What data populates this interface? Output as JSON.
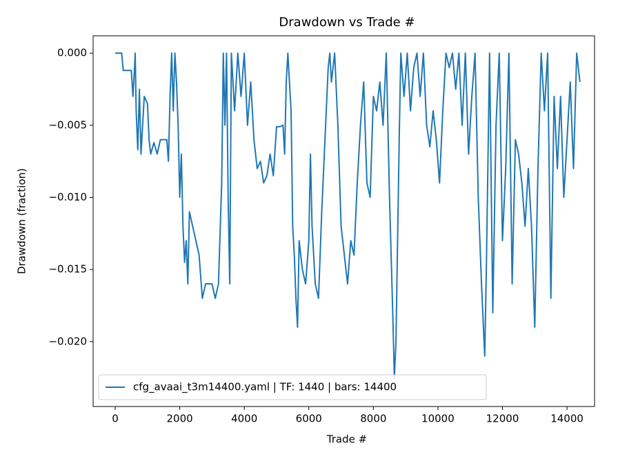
{
  "chart_data": {
    "type": "line",
    "title": "Drawdown vs Trade #",
    "xlabel": "Trade #",
    "ylabel": "Drawdown (fraction)",
    "x": [
      0,
      200,
      250,
      500,
      550,
      600,
      620,
      650,
      700,
      750,
      800,
      900,
      1000,
      1050,
      1100,
      1200,
      1300,
      1400,
      1600,
      1650,
      1700,
      1750,
      1800,
      1850,
      1900,
      1950,
      2000,
      2050,
      2100,
      2150,
      2200,
      2250,
      2300,
      2400,
      2500,
      2600,
      2700,
      2800,
      3000,
      3100,
      3200,
      3300,
      3350,
      3400,
      3450,
      3500,
      3550,
      3600,
      3700,
      3800,
      3900,
      4000,
      4100,
      4200,
      4300,
      4400,
      4500,
      4600,
      4700,
      4800,
      4900,
      5000,
      5100,
      5200,
      5250,
      5300,
      5350,
      5450,
      5500,
      5550,
      5600,
      5650,
      5700,
      5800,
      5900,
      6000,
      6050,
      6100,
      6200,
      6300,
      6400,
      6500,
      6600,
      6650,
      6700,
      6800,
      6900,
      7000,
      7100,
      7200,
      7300,
      7400,
      7500,
      7600,
      7700,
      7800,
      7900,
      8000,
      8100,
      8200,
      8300,
      8400,
      8500,
      8600,
      8650,
      8700,
      8800,
      8850,
      8950,
      9050,
      9150,
      9250,
      9350,
      9450,
      9550,
      9650,
      9750,
      9850,
      9950,
      10050,
      10150,
      10250,
      10350,
      10450,
      10550,
      10650,
      10750,
      10850,
      10950,
      11050,
      11150,
      11250,
      11350,
      11450,
      11500,
      11600,
      11700,
      11800,
      11900,
      12000,
      12100,
      12200,
      12300,
      12400,
      12500,
      12600,
      12700,
      12800,
      12900,
      13000,
      13100,
      13200,
      13300,
      13400,
      13500,
      13600,
      13700,
      13800,
      13900,
      14000,
      14100,
      14200,
      14300,
      14400
    ],
    "series": [
      {
        "name": "cfg_avaai_t3m14400.yaml | TF: 1440 | bars: 14400",
        "color": "#1f77b4",
        "values": [
          0,
          0,
          -0.0012,
          -0.0012,
          -0.003,
          -0.001,
          0,
          -0.004,
          -0.0067,
          -0.0025,
          -0.007,
          -0.003,
          -0.0035,
          -0.006,
          -0.007,
          -0.0062,
          -0.007,
          -0.006,
          -0.006,
          -0.0075,
          -0.003,
          0,
          -0.004,
          0,
          -0.002,
          -0.005,
          -0.01,
          -0.007,
          -0.012,
          -0.0145,
          -0.013,
          -0.016,
          -0.011,
          -0.012,
          -0.013,
          -0.014,
          -0.017,
          -0.016,
          -0.016,
          -0.017,
          -0.016,
          -0.009,
          0,
          -0.005,
          0,
          -0.01,
          -0.016,
          0,
          -0.004,
          0,
          -0.003,
          0,
          -0.005,
          -0.002,
          -0.006,
          -0.008,
          -0.0075,
          -0.009,
          -0.0085,
          -0.007,
          -0.0085,
          -0.0051,
          -0.0051,
          -0.005,
          -0.007,
          -0.002,
          0,
          -0.004,
          -0.012,
          -0.014,
          -0.017,
          -0.019,
          -0.013,
          -0.015,
          -0.016,
          -0.013,
          -0.007,
          -0.012,
          -0.016,
          -0.017,
          -0.011,
          -0.006,
          -0.001,
          0,
          -0.002,
          0,
          -0.005,
          -0.012,
          -0.014,
          -0.016,
          -0.013,
          -0.014,
          -0.009,
          -0.005,
          -0.002,
          -0.009,
          -0.01,
          -0.003,
          -0.004,
          -0.002,
          -0.005,
          0,
          -0.01,
          -0.018,
          -0.0225,
          -0.02,
          -0.006,
          0,
          -0.003,
          0,
          -0.004,
          -0.001,
          0,
          -0.003,
          0,
          -0.005,
          -0.0065,
          -0.004,
          -0.006,
          -0.009,
          -0.004,
          0,
          -0.001,
          0,
          -0.0025,
          0,
          -0.005,
          0,
          -0.007,
          -0.003,
          0,
          -0.01,
          -0.016,
          -0.021,
          -0.015,
          0,
          -0.018,
          -0.005,
          0,
          -0.013,
          -0.008,
          0,
          -0.016,
          -0.006,
          -0.007,
          -0.009,
          -0.012,
          -0.008,
          -0.012,
          -0.019,
          -0.008,
          0,
          -0.004,
          0,
          -0.017,
          -0.003,
          -0.008,
          -0.003,
          -0.01,
          -0.006,
          -0.002,
          -0.008,
          0,
          -0.002
        ]
      }
    ],
    "xlim": [
      -684,
      14853
    ],
    "ylim": [
      -0.0245,
      0.0012
    ],
    "xticks": [
      0,
      2000,
      4000,
      6000,
      8000,
      10000,
      12000,
      14000
    ],
    "yticks": [
      {
        "value": 0,
        "label": "0.000"
      },
      {
        "value": -0.005,
        "label": "−0.005"
      },
      {
        "value": -0.01,
        "label": "−0.010"
      },
      {
        "value": -0.015,
        "label": "−0.015"
      },
      {
        "value": -0.02,
        "label": "−0.020"
      }
    ],
    "legend": "lower left",
    "grid": false
  }
}
